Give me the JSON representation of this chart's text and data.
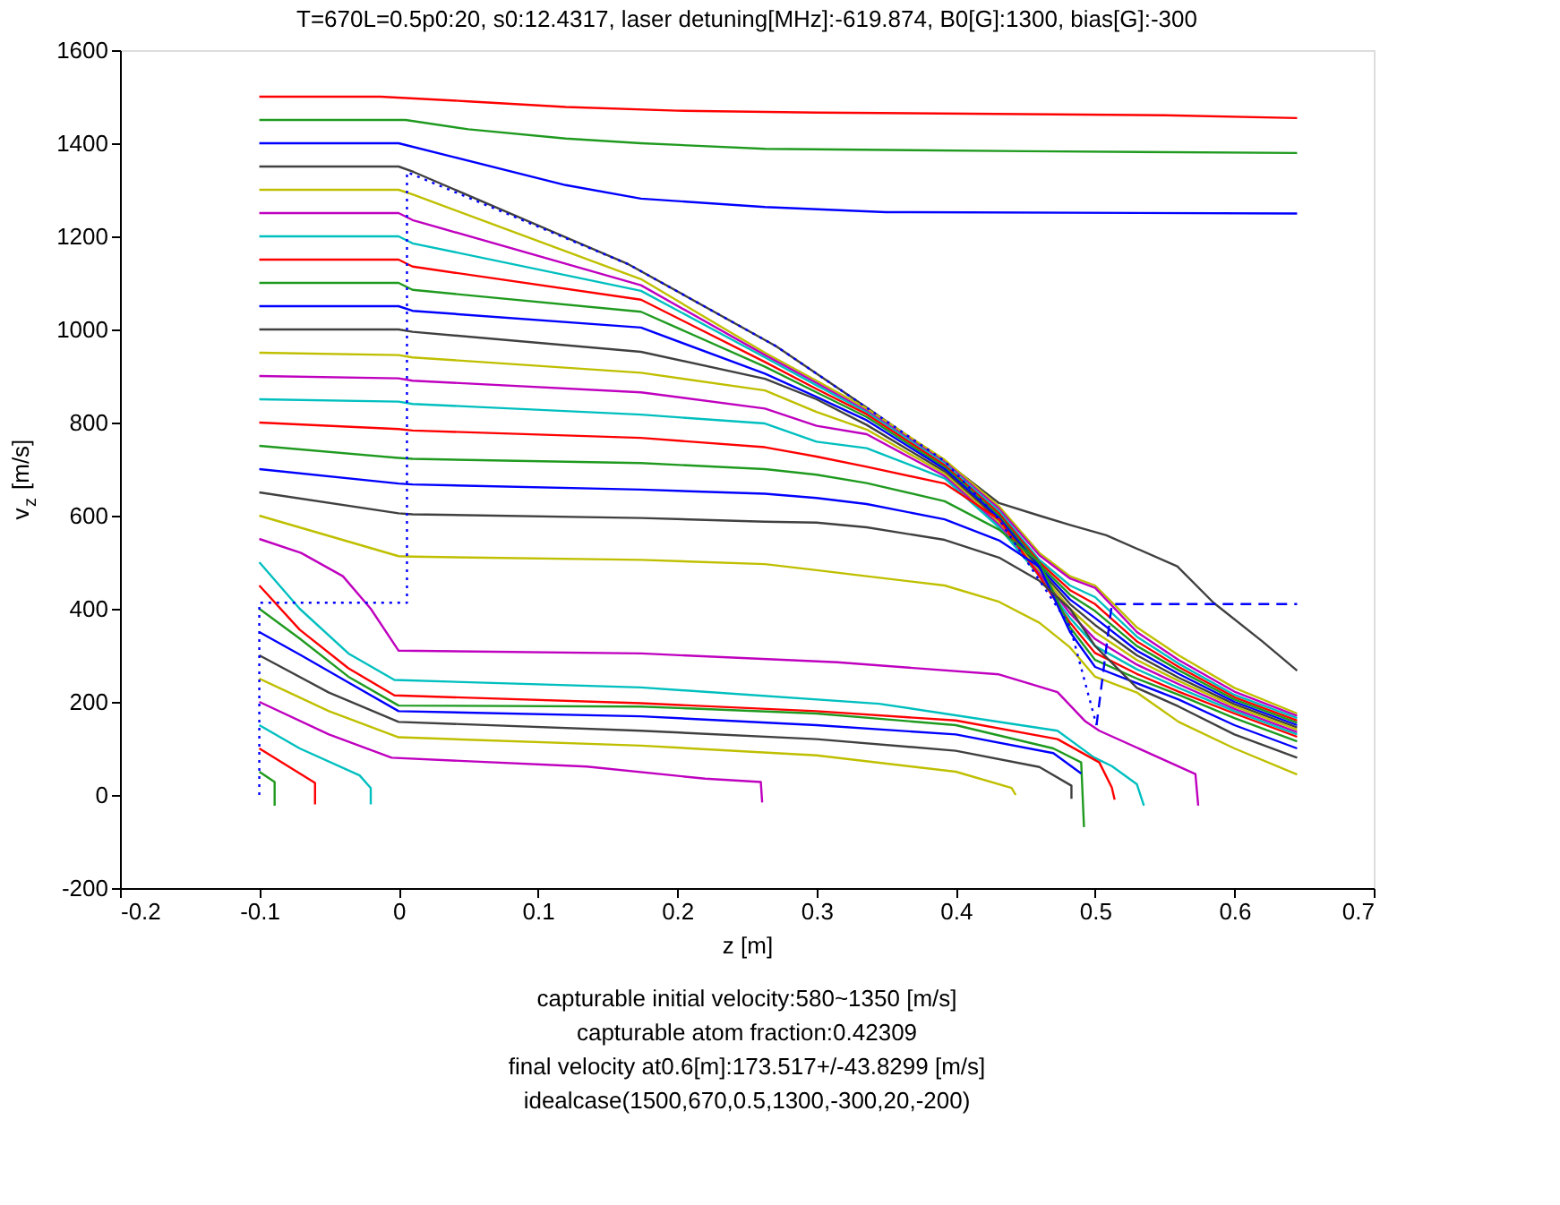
{
  "chart_data": {
    "type": "line",
    "title": "T=670L=0.5p0:20, s0:12.4317, laser detuning[MHz]:-619.874, B0[G]:1300, bias[G]:-300",
    "xlabel": "z [m]",
    "ylabel": "v$_{z}$ [m/s]",
    "annotations": [
      "capturable initial velocity:580~1350 [m/s]",
      "capturable atom fraction:0.42309",
      "final velocity at0.6[m]:173.517+/-43.8299 [m/s]",
      "idealcase(1500,670,0.5,1300,-300,20,-200)"
    ],
    "xlim": [
      -0.2,
      0.7
    ],
    "xticks": [
      -0.2,
      -0.1,
      0,
      0.1,
      0.2,
      0.3,
      0.4,
      0.5,
      0.6,
      0.7
    ],
    "ylim": [
      -200,
      1600
    ],
    "yticks": [
      -200,
      0,
      200,
      400,
      600,
      800,
      1000,
      1200,
      1400,
      1600
    ],
    "series": [
      {
        "color": "#ff0000",
        "x": [
          -0.1,
          -0.013,
          0.05,
          0.12,
          0.2,
          0.3,
          0.55,
          0.645
        ],
        "values": [
          1500,
          1500,
          1490,
          1478,
          1470,
          1466,
          1460,
          1454
        ]
      },
      {
        "color": "#1f9a1f",
        "x": [
          -0.1,
          0.005,
          0.05,
          0.12,
          0.174,
          0.263,
          0.45,
          0.645
        ],
        "values": [
          1450,
          1450,
          1430,
          1410,
          1400,
          1388,
          1383,
          1379
        ]
      },
      {
        "color": "#0000ff",
        "x": [
          -0.1,
          0,
          0.04,
          0.12,
          0.174,
          0.263,
          0.35,
          0.645
        ],
        "values": [
          1400,
          1400,
          1370,
          1310,
          1281,
          1263,
          1252,
          1249
        ]
      },
      {
        "color": "#404040",
        "x": [
          -0.1,
          0,
          0.011,
          0.165,
          0.271,
          0.336,
          0.392,
          0.431,
          0.46,
          0.482,
          0.508,
          0.559,
          0.585,
          0.62,
          0.645
        ],
        "values": [
          1350,
          1350,
          1338,
          1140,
          964,
          832,
          717,
          627,
          600,
          580,
          558,
          491,
          413,
          330,
          267
        ]
      },
      {
        "color": "#bfbf00",
        "x": [
          -0.1,
          0,
          0.01,
          0.174,
          0.263,
          0.3,
          0.336,
          0.392,
          0.431,
          0.46,
          0.482,
          0.5,
          0.53,
          0.56,
          0.6,
          0.645
        ],
        "values": [
          1300,
          1300,
          1290,
          1108,
          950,
          890,
          830,
          720,
          620,
          520,
          470,
          450,
          360,
          300,
          230,
          175
        ]
      },
      {
        "color": "#bf00bf",
        "x": [
          -0.1,
          0,
          0.01,
          0.174,
          0.263,
          0.3,
          0.336,
          0.392,
          0.431,
          0.46,
          0.482,
          0.5,
          0.53,
          0.56,
          0.6,
          0.645
        ],
        "values": [
          1250,
          1250,
          1235,
          1095,
          945,
          885,
          825,
          715,
          615,
          515,
          465,
          445,
          350,
          290,
          222,
          170
        ]
      },
      {
        "color": "#00bfbf",
        "x": [
          -0.1,
          0,
          0.01,
          0.174,
          0.263,
          0.3,
          0.336,
          0.392,
          0.431,
          0.46,
          0.482,
          0.5,
          0.53,
          0.56,
          0.6,
          0.645
        ],
        "values": [
          1200,
          1200,
          1185,
          1083,
          940,
          880,
          822,
          712,
          610,
          505,
          450,
          425,
          340,
          282,
          215,
          165
        ]
      },
      {
        "color": "#ff0000",
        "x": [
          -0.1,
          0,
          0.01,
          0.174,
          0.263,
          0.3,
          0.336,
          0.392,
          0.431,
          0.46,
          0.482,
          0.5,
          0.53,
          0.56,
          0.6,
          0.645
        ],
        "values": [
          1150,
          1150,
          1135,
          1064,
          930,
          872,
          818,
          708,
          605,
          500,
          440,
          410,
          330,
          275,
          210,
          160
        ]
      },
      {
        "color": "#1f9a1f",
        "x": [
          -0.1,
          0,
          0.01,
          0.174,
          0.263,
          0.3,
          0.336,
          0.392,
          0.431,
          0.46,
          0.482,
          0.5,
          0.53,
          0.56,
          0.6,
          0.645
        ],
        "values": [
          1100,
          1100,
          1085,
          1038,
          920,
          865,
          812,
          704,
          600,
          495,
          430,
          395,
          320,
          268,
          205,
          155
        ]
      },
      {
        "color": "#0000ff",
        "x": [
          -0.1,
          0,
          0.01,
          0.174,
          0.263,
          0.3,
          0.336,
          0.392,
          0.431,
          0.46,
          0.482,
          0.5,
          0.53,
          0.56,
          0.6,
          0.645
        ],
        "values": [
          1050,
          1050,
          1040,
          1004,
          905,
          855,
          805,
          700,
          595,
          490,
          420,
          380,
          310,
          260,
          200,
          150
        ]
      },
      {
        "color": "#404040",
        "x": [
          -0.1,
          0,
          0.01,
          0.174,
          0.263,
          0.3,
          0.336,
          0.392,
          0.431,
          0.46,
          0.482,
          0.5,
          0.53,
          0.56,
          0.6,
          0.645
        ],
        "values": [
          1000,
          1000,
          995,
          952,
          894,
          850,
          795,
          695,
          590,
          485,
          410,
          365,
          300,
          252,
          195,
          145
        ]
      },
      {
        "color": "#bfbf00",
        "x": [
          -0.1,
          0,
          0.01,
          0.174,
          0.263,
          0.3,
          0.336,
          0.392,
          0.431,
          0.46,
          0.482,
          0.5,
          0.53,
          0.56,
          0.6,
          0.645
        ],
        "values": [
          950,
          945,
          940,
          907,
          869,
          823,
          785,
          690,
          585,
          480,
          400,
          350,
          290,
          245,
          190,
          140
        ]
      },
      {
        "color": "#bf00bf",
        "x": [
          -0.1,
          0,
          0.01,
          0.174,
          0.263,
          0.3,
          0.336,
          0.392,
          0.431,
          0.46,
          0.482,
          0.5,
          0.53,
          0.56,
          0.6,
          0.645
        ],
        "values": [
          900,
          895,
          890,
          865,
          830,
          793,
          775,
          685,
          580,
          475,
          390,
          335,
          280,
          238,
          185,
          135
        ]
      },
      {
        "color": "#00bfbf",
        "x": [
          -0.1,
          0,
          0.01,
          0.174,
          0.263,
          0.3,
          0.336,
          0.392,
          0.431,
          0.46,
          0.482,
          0.5,
          0.53,
          0.56,
          0.6,
          0.645
        ],
        "values": [
          850,
          845,
          840,
          817,
          798,
          759,
          745,
          680,
          575,
          470,
          380,
          320,
          270,
          230,
          180,
          130
        ]
      },
      {
        "color": "#ff0000",
        "x": [
          -0.1,
          0,
          0.01,
          0.174,
          0.263,
          0.3,
          0.336,
          0.392,
          0.431,
          0.46,
          0.482,
          0.5,
          0.53,
          0.56,
          0.6,
          0.645
        ],
        "values": [
          800,
          786,
          783,
          767,
          747,
          727,
          705,
          669,
          592,
          470,
          370,
          305,
          260,
          222,
          175,
          125
        ]
      },
      {
        "color": "#1f9a1f",
        "x": [
          -0.1,
          0,
          0.01,
          0.174,
          0.263,
          0.3,
          0.336,
          0.392,
          0.431,
          0.46,
          0.482,
          0.5,
          0.53,
          0.56,
          0.6,
          0.645
        ],
        "values": [
          750,
          724,
          722,
          713,
          700,
          688,
          670,
          631,
          570,
          500,
          360,
          290,
          250,
          215,
          165,
          115
        ]
      },
      {
        "color": "#0000ff",
        "x": [
          -0.1,
          0,
          0.01,
          0.174,
          0.263,
          0.3,
          0.336,
          0.392,
          0.431,
          0.46,
          0.482,
          0.5,
          0.53,
          0.56,
          0.6,
          0.645
        ],
        "values": [
          700,
          669,
          667,
          656,
          647,
          638,
          625,
          592,
          547,
          490,
          350,
          275,
          240,
          205,
          150,
          100
        ]
      },
      {
        "color": "#404040",
        "x": [
          -0.1,
          0,
          0.01,
          0.174,
          0.263,
          0.3,
          0.336,
          0.392,
          0.431,
          0.46,
          0.482,
          0.5,
          0.53,
          0.56,
          0.6,
          0.645
        ],
        "values": [
          650,
          605,
          603,
          595,
          587,
          585,
          575,
          548,
          510,
          460,
          400,
          320,
          230,
          190,
          130,
          80
        ]
      },
      {
        "color": "#bfbf00",
        "x": [
          -0.1,
          0,
          0.01,
          0.174,
          0.263,
          0.3,
          0.336,
          0.392,
          0.431,
          0.46,
          0.482,
          0.5,
          0.53,
          0.56,
          0.6,
          0.645
        ],
        "values": [
          600,
          513,
          512,
          505,
          496,
          483,
          470,
          450,
          415,
          370,
          317,
          254,
          220,
          157,
          100,
          44
        ]
      },
      {
        "color": "#bf00bf",
        "x": [
          -0.1,
          -0.07,
          -0.04,
          -0.02,
          0,
          0.174,
          0.315,
          0.431,
          0.473,
          0.493,
          0.503,
          0.572,
          0.574
        ],
        "values": [
          550,
          520,
          470,
          400,
          310,
          304,
          285,
          259,
          221,
          158,
          138,
          45,
          -23
        ]
      },
      {
        "color": "#00bfbf",
        "x": [
          -0.1,
          -0.071,
          -0.036,
          -0.003,
          0.174,
          0.345,
          0.473,
          0.499,
          0.512,
          0.53,
          0.535
        ],
        "values": [
          500,
          400,
          304,
          247,
          231,
          196,
          138,
          81,
          62,
          23,
          -23
        ]
      },
      {
        "color": "#ff0000",
        "x": [
          -0.1,
          -0.071,
          -0.036,
          -0.003,
          0.174,
          0.3,
          0.4,
          0.473,
          0.503,
          0.512,
          0.514
        ],
        "values": [
          450,
          355,
          272,
          214,
          197,
          180,
          160,
          120,
          70,
          16,
          -10
        ]
      },
      {
        "color": "#1f9a1f",
        "x": [
          -0.1,
          -0.071,
          -0.036,
          0,
          0.174,
          0.3,
          0.4,
          0.47,
          0.49,
          0.492
        ],
        "values": [
          400,
          336,
          254,
          192,
          190,
          175,
          150,
          100,
          70,
          -69
        ]
      },
      {
        "color": "#0000ff",
        "x": [
          -0.1,
          -0.07,
          -0.035,
          0,
          0.174,
          0.3,
          0.4,
          0.47,
          0.49
        ],
        "values": [
          350,
          300,
          240,
          180,
          169,
          150,
          130,
          90,
          46
        ]
      },
      {
        "color": "#404040",
        "x": [
          -0.1,
          -0.05,
          0,
          0.174,
          0.3,
          0.4,
          0.46,
          0.483,
          0.483
        ],
        "values": [
          300,
          220,
          157,
          138,
          120,
          95,
          60,
          20,
          -8
        ]
      },
      {
        "color": "#bfbf00",
        "x": [
          -0.1,
          -0.05,
          0,
          0.174,
          0.3,
          0.4,
          0.44,
          0.443
        ],
        "values": [
          250,
          180,
          124,
          106,
          85,
          50,
          15,
          0
        ]
      },
      {
        "color": "#bf00bf",
        "x": [
          -0.1,
          -0.05,
          -0.005,
          0.135,
          0.22,
          0.26,
          0.261
        ],
        "values": [
          200,
          130,
          80,
          61,
          35,
          28,
          -16
        ]
      },
      {
        "color": "#00bfbf",
        "x": [
          -0.1,
          -0.071,
          -0.028,
          -0.02,
          -0.02
        ],
        "values": [
          150,
          100,
          42,
          15,
          -20
        ]
      },
      {
        "color": "#ff0000",
        "x": [
          -0.1,
          -0.06,
          -0.06
        ],
        "values": [
          100,
          26,
          -20
        ]
      },
      {
        "color": "#1f9a1f",
        "x": [
          -0.1,
          -0.089,
          -0.089
        ],
        "values": [
          50,
          28,
          -23
        ]
      },
      {
        "color": "#0000ff",
        "line_style": "dotted",
        "x": [
          -0.1,
          -0.1,
          0.006,
          0.006,
          0.165,
          0.271,
          0.336,
          0.392,
          0.431,
          0.482,
          0.501
        ],
        "values": [
          0,
          413,
          413,
          1338,
          1140,
          964,
          832,
          717,
          592,
          362,
          150
        ]
      },
      {
        "color": "#0000ff",
        "line_style": "dashed",
        "x": [
          0.501,
          0.512,
          0.645
        ],
        "values": [
          150,
          410,
          410
        ]
      }
    ]
  }
}
